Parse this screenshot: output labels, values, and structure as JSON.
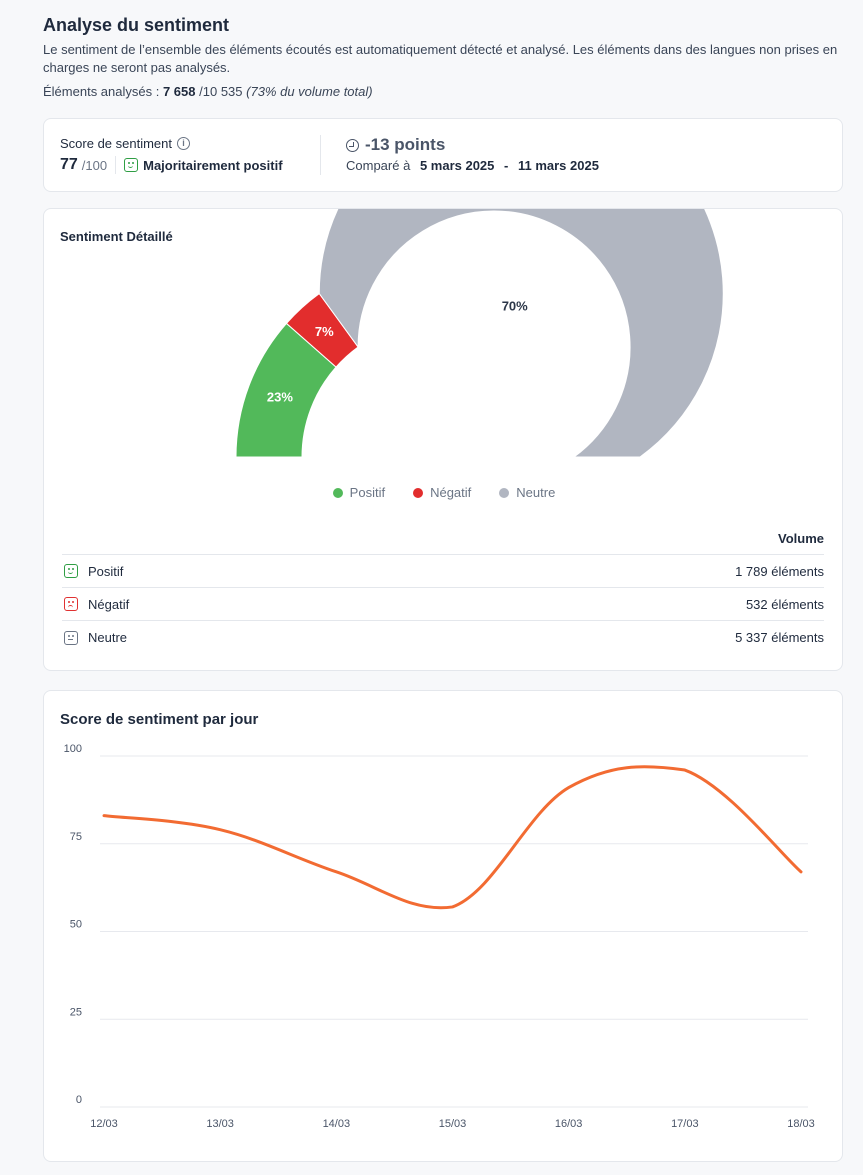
{
  "header": {
    "title": "Analyse du sentiment",
    "description": "Le sentiment de l’ensemble des éléments écoutés est automatiquement détecté et analysé. Les éléments dans des langues non prises en charges ne seront pas analysés.",
    "analyzed_label": "Éléments analysés :",
    "analyzed_count": "7 658",
    "analyzed_total": "/10 535",
    "analyzed_share": "(73% du volume total)"
  },
  "score": {
    "label": "Score de sentiment",
    "info_icon": "info-icon",
    "value": "77",
    "max": "/100",
    "sentiment_icon": "smile-icon",
    "sentiment_label": "Majoritairement positif",
    "delta_icon": "arrow-down-right-icon",
    "delta": "-13 points",
    "compare_label": "Comparé à",
    "compare_start": "5 mars 2025",
    "compare_separator": "-",
    "compare_end": "11 mars 2025"
  },
  "detail": {
    "title": "Sentiment Détaillé",
    "volume_header": "Volume",
    "rows": [
      {
        "label": "Positif",
        "icon": "smile-icon",
        "volume": "1 789 éléments"
      },
      {
        "label": "Négatif",
        "icon": "frown-icon",
        "volume": "532 éléments"
      },
      {
        "label": "Neutre",
        "icon": "neutral-face-icon",
        "volume": "5 337 éléments"
      }
    ]
  },
  "chart_data": [
    {
      "type": "pie",
      "variant": "half-donut",
      "categories": [
        "Positif",
        "Négatif",
        "Neutre"
      ],
      "values": [
        23,
        7,
        70
      ],
      "labels": [
        "23%",
        "7%",
        "70%"
      ],
      "colors": [
        "#52b95a",
        "#e22d2d",
        "#b1b6c1"
      ],
      "label_colors": [
        "#ffffff",
        "#ffffff",
        "#2b3648"
      ],
      "legend": "bottom"
    },
    {
      "type": "line",
      "title": "Score de sentiment par jour",
      "categories": [
        "12/03",
        "13/03",
        "14/03",
        "15/03",
        "16/03",
        "17/03",
        "18/03"
      ],
      "series": [
        {
          "values": [
            83,
            79,
            67,
            57,
            91,
            96,
            67
          ],
          "color": "#f26b32"
        }
      ],
      "ylim": [
        0,
        100
      ],
      "yticks": [
        "0",
        "25",
        "50",
        "75",
        "100"
      ],
      "grid": true
    }
  ]
}
